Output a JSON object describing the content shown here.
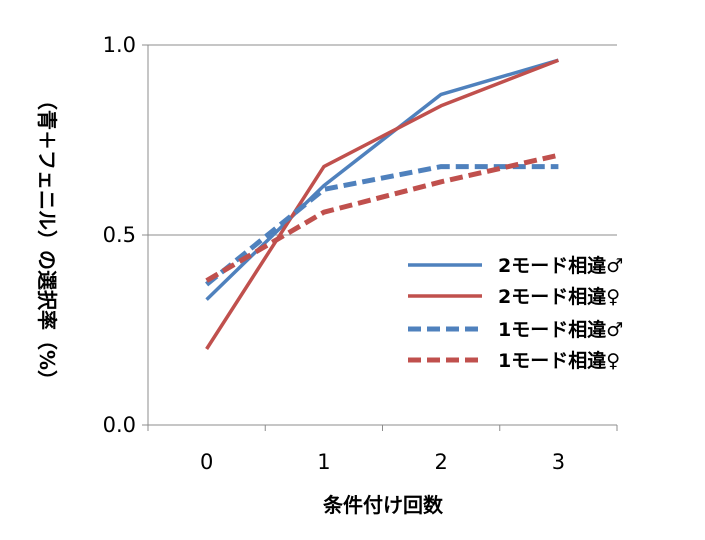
{
  "chart_data": {
    "type": "line",
    "title": "",
    "xlabel": "条件付け回数",
    "ylabel": "（青＋フェニル）の選択率（%）",
    "x": [
      0,
      1,
      2,
      3
    ],
    "x_tick_labels": [
      "0",
      "1",
      "2",
      "3"
    ],
    "y_tick_labels": [
      "0.0",
      "0.5",
      "1.0"
    ],
    "xlim": [
      -0.5,
      3.5
    ],
    "ylim": [
      0,
      1
    ],
    "grid": "horizontal",
    "legend_position": "right",
    "series": [
      {
        "name": "2モード相違♂",
        "values": [
          0.33,
          0.63,
          0.87,
          0.96
        ],
        "color": "#4F81BD",
        "style": "solid"
      },
      {
        "name": "2モード相違♀",
        "values": [
          0.2,
          0.68,
          0.84,
          0.96
        ],
        "color": "#C0504D",
        "style": "solid"
      },
      {
        "name": "1モード相違♂",
        "values": [
          0.37,
          0.62,
          0.68,
          0.68
        ],
        "color": "#4F81BD",
        "style": "dashed"
      },
      {
        "name": "1モード相違♀",
        "values": [
          0.38,
          0.56,
          0.64,
          0.71
        ],
        "color": "#C0504D",
        "style": "dashed"
      }
    ]
  }
}
